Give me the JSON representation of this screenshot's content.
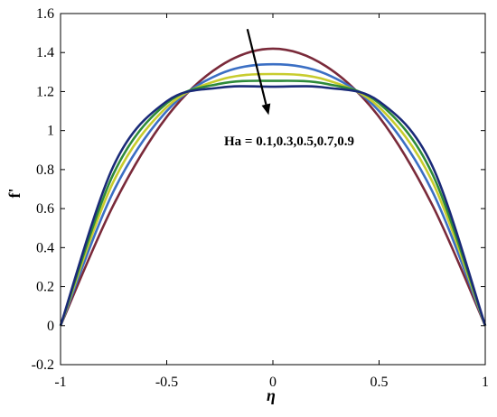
{
  "chart_data": {
    "type": "line",
    "xlabel": "η",
    "ylabel": "f'",
    "xlim": [
      -1,
      1
    ],
    "ylim": [
      -0.2,
      1.6
    ],
    "xticks": [
      -1,
      -0.5,
      0,
      0.5,
      1
    ],
    "xtick_labels": [
      "-1",
      "-0.5",
      "0",
      "0.5",
      "1"
    ],
    "yticks": [
      -0.2,
      0,
      0.2,
      0.4,
      0.6,
      0.8,
      1,
      1.2,
      1.4,
      1.6
    ],
    "ytick_labels": [
      "-0.2",
      "0",
      "0.2",
      "0.4",
      "0.6",
      "0.8",
      "1",
      "1.2",
      "1.4",
      "1.6"
    ],
    "grid": false,
    "annotation": {
      "text": "Ha = 0.1,0.3,0.5,0.7,0.9",
      "arrow_from": [
        -0.12,
        1.52
      ],
      "arrow_to": [
        -0.02,
        1.08
      ]
    },
    "series": [
      {
        "color": "#7a2a3a",
        "x": [
          -1,
          -0.75,
          -0.5,
          -0.25,
          0,
          0.25,
          0.5,
          0.75,
          1
        ],
        "y": [
          0,
          0.62,
          1.07,
          1.33,
          1.42,
          1.33,
          1.07,
          0.62,
          0
        ]
      },
      {
        "color": "#3b6fc4",
        "x": [
          -1,
          -0.75,
          -0.5,
          -0.25,
          0,
          0.25,
          0.5,
          0.75,
          1
        ],
        "y": [
          0,
          0.69,
          1.1,
          1.29,
          1.34,
          1.29,
          1.1,
          0.69,
          0
        ]
      },
      {
        "color": "#c8cc2e",
        "x": [
          -1,
          -0.75,
          -0.5,
          -0.25,
          0,
          0.25,
          0.5,
          0.75,
          1
        ],
        "y": [
          0,
          0.74,
          1.12,
          1.26,
          1.29,
          1.26,
          1.12,
          0.74,
          0
        ]
      },
      {
        "color": "#2e8a3a",
        "x": [
          -1,
          -0.75,
          -0.5,
          -0.25,
          0,
          0.25,
          0.5,
          0.75,
          1
        ],
        "y": [
          0,
          0.78,
          1.14,
          1.24,
          1.255,
          1.24,
          1.14,
          0.78,
          0
        ]
      },
      {
        "color": "#1a2a78",
        "x": [
          -1,
          -0.75,
          -0.5,
          -0.25,
          0,
          0.25,
          0.5,
          0.75,
          1
        ],
        "y": [
          0,
          0.82,
          1.15,
          1.22,
          1.225,
          1.22,
          1.15,
          0.82,
          0
        ]
      }
    ]
  }
}
